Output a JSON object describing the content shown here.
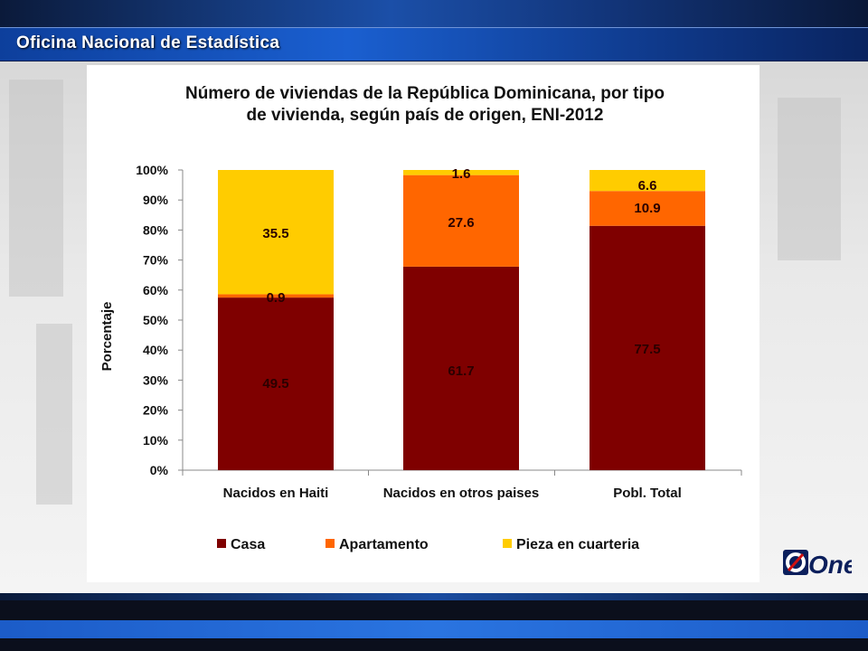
{
  "header": {
    "org_name": "Oficina Nacional de Estadística"
  },
  "logo": {
    "text": "One",
    "icon": "one-logo"
  },
  "chart_data": {
    "type": "bar",
    "stacked": true,
    "title_line1": "Número de viviendas de la República Dominicana, por tipo",
    "title_line2": "de vivienda, según país de origen, ENI-2012",
    "ylabel": "Porcentaje",
    "xlabel": "",
    "ylim": [
      0,
      100
    ],
    "yticks": [
      "0%",
      "10%",
      "20%",
      "30%",
      "40%",
      "50%",
      "60%",
      "70%",
      "80%",
      "90%",
      "100%"
    ],
    "grid": false,
    "legend_position": "bottom",
    "categories": [
      "Nacidos en Haiti",
      "Nacidos en otros paises",
      "Pobl. Total"
    ],
    "series": [
      {
        "name": "Casa",
        "color": "#7f0000",
        "values": [
          57.5,
          67.8,
          81.4
        ],
        "labels": [
          "49.5",
          "61.7",
          "77.5"
        ]
      },
      {
        "name": "Apartamento",
        "color": "#ff6600",
        "values": [
          1.1,
          30.5,
          11.6
        ],
        "labels": [
          "0.9",
          "27.6",
          "10.9"
        ]
      },
      {
        "name": "Pieza en cuarteria",
        "color": "#ffcc00",
        "values": [
          41.4,
          1.7,
          7.0
        ],
        "labels": [
          "35.5",
          "1.6",
          "6.6"
        ]
      }
    ]
  }
}
